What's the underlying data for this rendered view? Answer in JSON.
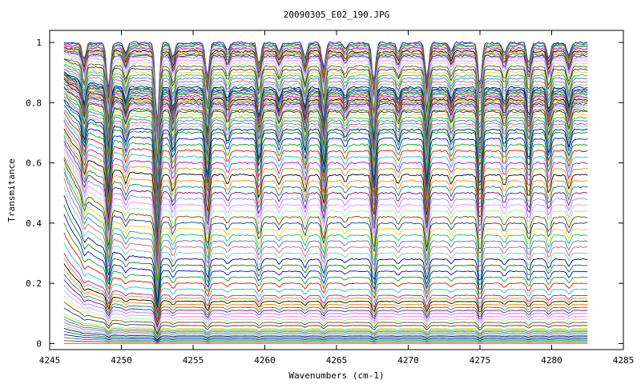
{
  "chart_data": {
    "type": "line",
    "title": "20090305_E02_190.JPG",
    "xlabel": "Wavenumbers (cm-1)",
    "ylabel": "Transmitance",
    "xlim": [
      4245,
      4285
    ],
    "ylim": [
      -0.02,
      1.04
    ],
    "x_ticks": [
      4245,
      4250,
      4255,
      4260,
      4265,
      4270,
      4275,
      4280,
      4285
    ],
    "x_tick_labels": [
      "4245",
      "4250",
      "4255",
      "4260",
      "4265",
      "4270",
      "4275",
      "4280",
      "4285"
    ],
    "y_ticks": [
      0,
      0.2,
      0.4,
      0.6,
      0.8,
      1
    ],
    "y_tick_labels": [
      "0",
      "0.2",
      "0.4",
      "0.6",
      "0.8",
      "1"
    ],
    "x_range": [
      4246.0,
      4282.5
    ],
    "grid": false,
    "legend": "none",
    "absorption_lines": [
      {
        "x": 4247.4,
        "depth": 0.08
      },
      {
        "x": 4249.1,
        "depth": 0.22
      },
      {
        "x": 4250.3,
        "depth": 0.05
      },
      {
        "x": 4252.5,
        "depth": 0.38
      },
      {
        "x": 4253.6,
        "depth": 0.07
      },
      {
        "x": 4256.0,
        "depth": 0.16
      },
      {
        "x": 4257.4,
        "depth": 0.04
      },
      {
        "x": 4259.6,
        "depth": 0.1
      },
      {
        "x": 4261.0,
        "depth": 0.04
      },
      {
        "x": 4262.8,
        "depth": 0.07
      },
      {
        "x": 4264.1,
        "depth": 0.12
      },
      {
        "x": 4265.6,
        "depth": 0.03
      },
      {
        "x": 4267.6,
        "depth": 0.18
      },
      {
        "x": 4269.3,
        "depth": 0.04
      },
      {
        "x": 4271.3,
        "depth": 0.17
      },
      {
        "x": 4273.0,
        "depth": 0.04
      },
      {
        "x": 4275.0,
        "depth": 0.2
      },
      {
        "x": 4276.7,
        "depth": 0.05
      },
      {
        "x": 4278.4,
        "depth": 0.1
      },
      {
        "x": 4279.8,
        "depth": 0.08
      },
      {
        "x": 4281.2,
        "depth": 0.06
      }
    ],
    "series_levels": [
      1.0,
      0.995,
      0.99,
      0.985,
      0.98,
      0.975,
      0.97,
      0.965,
      0.96,
      0.955,
      0.95,
      0.94,
      0.93,
      0.92,
      0.91,
      0.9,
      0.89,
      0.88,
      0.87,
      0.86,
      0.85,
      0.845,
      0.84,
      0.835,
      0.83,
      0.825,
      0.82,
      0.815,
      0.81,
      0.805,
      0.8,
      0.795,
      0.79,
      0.785,
      0.78,
      0.775,
      0.77,
      0.76,
      0.75,
      0.74,
      0.73,
      0.72,
      0.71,
      0.7,
      0.68,
      0.66,
      0.64,
      0.62,
      0.6,
      0.58,
      0.56,
      0.54,
      0.52,
      0.5,
      0.48,
      0.46,
      0.44,
      0.42,
      0.4,
      0.38,
      0.36,
      0.34,
      0.32,
      0.3,
      0.28,
      0.26,
      0.24,
      0.22,
      0.2,
      0.18,
      0.16,
      0.15,
      0.14,
      0.13,
      0.12,
      0.11,
      0.1,
      0.09,
      0.08,
      0.07,
      0.06,
      0.05,
      0.045,
      0.04,
      0.035,
      0.03,
      0.025,
      0.02,
      0.015,
      0.01,
      0.005,
      0.0
    ],
    "series_colors": [
      "#0000ff",
      "#00aa00",
      "#ff0000",
      "#00cccc",
      "#cc00cc",
      "#aaaa00",
      "#000000",
      "#ff8800",
      "#008888",
      "#880088",
      "#8888ff",
      "#ff88ff",
      "#88ff88",
      "#884400",
      "#004488",
      "#ffcc00",
      "#00cc66",
      "#6666cc",
      "#cc6666",
      "#66cccc",
      "#000088",
      "#008800"
    ]
  }
}
